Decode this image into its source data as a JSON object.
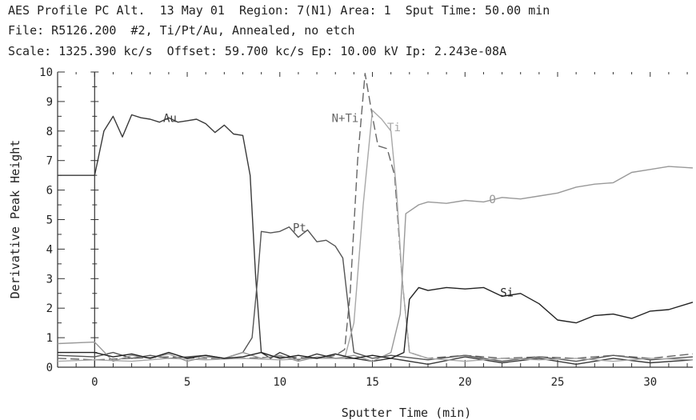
{
  "header": {
    "line1": "AES Profile PC Alt.  13 May 01  Region: 7(N1) Area: 1  Sput Time: 50.00 min",
    "line2": "File: R5126.200  #2, Ti/Pt/Au, Annealed, no etch",
    "line3": "Scale: 1325.390 kc/s  Offset: 59.700 kc/s Ep: 10.00 kV Ip: 2.243e-08A"
  },
  "chart_data": {
    "type": "line",
    "title": "",
    "xlabel": "Sputter Time (min)",
    "ylabel": "Derivative Peak Height",
    "xlim": [
      -2,
      32.3
    ],
    "ylim": [
      0,
      10
    ],
    "x_ticks": [
      "0",
      "5",
      "10",
      "15",
      "20",
      "25",
      "30"
    ],
    "y_ticks": [
      "0",
      "1",
      "2",
      "3",
      "4",
      "5",
      "6",
      "7",
      "8",
      "9",
      "10"
    ],
    "grid": false,
    "legend": "none",
    "series": [
      {
        "name": "Au",
        "color": "#3a3a3a",
        "dash": "",
        "label_at": [
          3.7,
          8.3
        ],
        "points": [
          [
            -2,
            6.5
          ],
          [
            0,
            6.5
          ],
          [
            0.5,
            8.0
          ],
          [
            1,
            8.5
          ],
          [
            1.5,
            7.8
          ],
          [
            2,
            8.55
          ],
          [
            2.5,
            8.45
          ],
          [
            3,
            8.4
          ],
          [
            3.5,
            8.3
          ],
          [
            4,
            8.45
          ],
          [
            4.5,
            8.3
          ],
          [
            5,
            8.35
          ],
          [
            5.5,
            8.4
          ],
          [
            6,
            8.25
          ],
          [
            6.5,
            7.95
          ],
          [
            7,
            8.2
          ],
          [
            7.5,
            7.9
          ],
          [
            8,
            7.85
          ],
          [
            8.4,
            6.5
          ],
          [
            8.7,
            3.0
          ],
          [
            9,
            0.5
          ],
          [
            9.5,
            0.3
          ],
          [
            10,
            0.5
          ],
          [
            11,
            0.25
          ],
          [
            12,
            0.45
          ],
          [
            13,
            0.3
          ],
          [
            14,
            0.3
          ],
          [
            15,
            0.2
          ],
          [
            16,
            0.3
          ],
          [
            18,
            0.1
          ],
          [
            20,
            0.35
          ],
          [
            22,
            0.15
          ],
          [
            24,
            0.3
          ],
          [
            26,
            0.1
          ],
          [
            28,
            0.3
          ],
          [
            30,
            0.15
          ],
          [
            32.3,
            0.25
          ]
        ]
      },
      {
        "name": "Pt",
        "color": "#555555",
        "dash": "",
        "label_at": [
          10.7,
          4.6
        ],
        "points": [
          [
            -2,
            0.4
          ],
          [
            0,
            0.35
          ],
          [
            1,
            0.5
          ],
          [
            2,
            0.3
          ],
          [
            3,
            0.4
          ],
          [
            4,
            0.3
          ],
          [
            5,
            0.35
          ],
          [
            6,
            0.4
          ],
          [
            7,
            0.3
          ],
          [
            8,
            0.5
          ],
          [
            8.5,
            1.0
          ],
          [
            8.8,
            3.0
          ],
          [
            9,
            4.6
          ],
          [
            9.5,
            4.55
          ],
          [
            10,
            4.6
          ],
          [
            10.5,
            4.75
          ],
          [
            11,
            4.4
          ],
          [
            11.5,
            4.65
          ],
          [
            12,
            4.25
          ],
          [
            12.5,
            4.3
          ],
          [
            13,
            4.1
          ],
          [
            13.4,
            3.7
          ],
          [
            13.8,
            1.5
          ],
          [
            14,
            0.5
          ],
          [
            15,
            0.3
          ],
          [
            16,
            0.4
          ],
          [
            18,
            0.25
          ],
          [
            20,
            0.4
          ],
          [
            22,
            0.2
          ],
          [
            24,
            0.35
          ],
          [
            26,
            0.2
          ],
          [
            28,
            0.4
          ],
          [
            30,
            0.25
          ],
          [
            32.3,
            0.35
          ]
        ]
      },
      {
        "name": "N+Ti",
        "color": "#666666",
        "dash": "11,5",
        "label_at": [
          12.8,
          8.3
        ],
        "points": [
          [
            -2,
            0.3
          ],
          [
            0,
            0.25
          ],
          [
            2,
            0.3
          ],
          [
            4,
            0.35
          ],
          [
            6,
            0.3
          ],
          [
            8,
            0.3
          ],
          [
            10,
            0.35
          ],
          [
            12,
            0.3
          ],
          [
            13,
            0.4
          ],
          [
            13.5,
            0.6
          ],
          [
            13.8,
            2.5
          ],
          [
            14.2,
            7.0
          ],
          [
            14.6,
            9.95
          ],
          [
            15,
            8.5
          ],
          [
            15.3,
            7.5
          ],
          [
            15.8,
            7.4
          ],
          [
            16.2,
            6.5
          ],
          [
            16.6,
            3.0
          ],
          [
            17,
            0.5
          ],
          [
            18,
            0.3
          ],
          [
            20,
            0.4
          ],
          [
            22,
            0.3
          ],
          [
            24,
            0.35
          ],
          [
            26,
            0.3
          ],
          [
            28,
            0.4
          ],
          [
            30,
            0.3
          ],
          [
            32.3,
            0.45
          ]
        ]
      },
      {
        "name": "Ti",
        "color": "#a8a8a8",
        "dash": "",
        "label_at": [
          15.8,
          8.0
        ],
        "points": [
          [
            -2,
            0.2
          ],
          [
            0,
            0.25
          ],
          [
            2,
            0.2
          ],
          [
            4,
            0.3
          ],
          [
            6,
            0.25
          ],
          [
            8,
            0.3
          ],
          [
            10,
            0.25
          ],
          [
            12,
            0.3
          ],
          [
            13.5,
            0.3
          ],
          [
            14,
            1.5
          ],
          [
            14.5,
            5.5
          ],
          [
            15,
            8.7
          ],
          [
            15.5,
            8.4
          ],
          [
            16,
            8.0
          ],
          [
            16.3,
            6.0
          ],
          [
            16.6,
            3.0
          ],
          [
            17,
            0.5
          ],
          [
            18,
            0.3
          ],
          [
            20,
            0.2
          ],
          [
            22,
            0.3
          ],
          [
            24,
            0.25
          ],
          [
            26,
            0.3
          ],
          [
            28,
            0.2
          ],
          [
            30,
            0.3
          ],
          [
            32.3,
            0.25
          ]
        ]
      },
      {
        "name": "O",
        "color": "#999999",
        "dash": "",
        "label_at": [
          21.3,
          5.55
        ],
        "points": [
          [
            -2,
            0.8
          ],
          [
            0,
            0.85
          ],
          [
            1,
            0.2
          ],
          [
            2,
            0.4
          ],
          [
            3,
            0.3
          ],
          [
            4,
            0.45
          ],
          [
            5,
            0.2
          ],
          [
            6,
            0.35
          ],
          [
            7,
            0.3
          ],
          [
            8,
            0.5
          ],
          [
            9,
            0.3
          ],
          [
            10,
            0.4
          ],
          [
            11,
            0.2
          ],
          [
            12,
            0.35
          ],
          [
            13,
            0.3
          ],
          [
            14,
            0.4
          ],
          [
            15,
            0.2
          ],
          [
            16,
            0.5
          ],
          [
            16.5,
            1.8
          ],
          [
            16.8,
            5.2
          ],
          [
            17.5,
            5.5
          ],
          [
            18,
            5.6
          ],
          [
            19,
            5.55
          ],
          [
            20,
            5.65
          ],
          [
            21,
            5.6
          ],
          [
            22,
            5.75
          ],
          [
            23,
            5.7
          ],
          [
            24,
            5.8
          ],
          [
            25,
            5.9
          ],
          [
            26,
            6.1
          ],
          [
            27,
            6.2
          ],
          [
            28,
            6.25
          ],
          [
            29,
            6.6
          ],
          [
            30,
            6.7
          ],
          [
            31,
            6.8
          ],
          [
            32.3,
            6.75
          ]
        ]
      },
      {
        "name": "Si",
        "color": "#222222",
        "dash": "",
        "label_at": [
          21.9,
          2.4
        ],
        "points": [
          [
            -2,
            0.5
          ],
          [
            0,
            0.5
          ],
          [
            1,
            0.35
          ],
          [
            2,
            0.45
          ],
          [
            3,
            0.3
          ],
          [
            4,
            0.5
          ],
          [
            5,
            0.3
          ],
          [
            6,
            0.4
          ],
          [
            7,
            0.3
          ],
          [
            8,
            0.35
          ],
          [
            9,
            0.5
          ],
          [
            10,
            0.3
          ],
          [
            11,
            0.4
          ],
          [
            12,
            0.3
          ],
          [
            13,
            0.45
          ],
          [
            14,
            0.3
          ],
          [
            15,
            0.4
          ],
          [
            16,
            0.3
          ],
          [
            16.7,
            0.5
          ],
          [
            17,
            2.3
          ],
          [
            17.5,
            2.7
          ],
          [
            18,
            2.6
          ],
          [
            19,
            2.7
          ],
          [
            20,
            2.65
          ],
          [
            21,
            2.7
          ],
          [
            22,
            2.4
          ],
          [
            23,
            2.5
          ],
          [
            24,
            2.15
          ],
          [
            25,
            1.6
          ],
          [
            26,
            1.5
          ],
          [
            27,
            1.75
          ],
          [
            28,
            1.8
          ],
          [
            29,
            1.65
          ],
          [
            30,
            1.9
          ],
          [
            31,
            1.95
          ],
          [
            32.3,
            2.2
          ]
        ]
      }
    ]
  }
}
